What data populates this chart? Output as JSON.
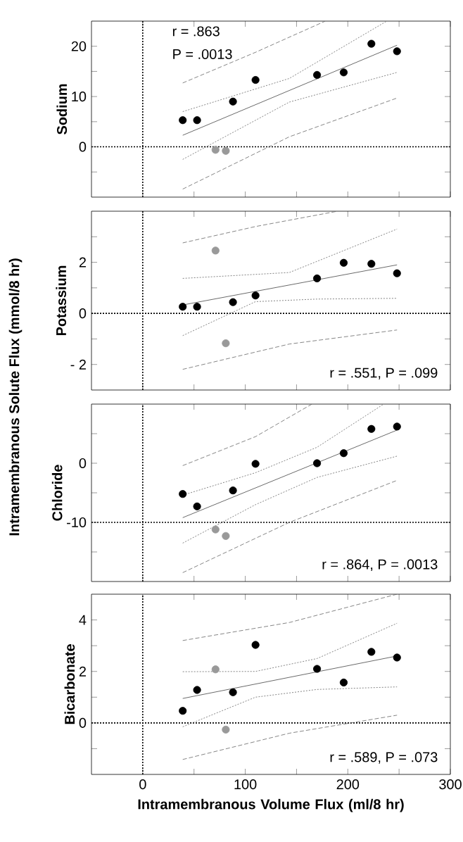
{
  "chart_data": [
    {
      "type": "scatter",
      "ylabel": "Sodium",
      "annotations": [
        "Intramembranous Solute Flux (mmol/8 hr)",
        "r =  .863",
        "P = .0013"
      ],
      "xlim": [
        -50,
        300
      ],
      "ylim": [
        -10,
        25
      ],
      "xticks": [
        0,
        {
          "value": 50,
          "label": null
        },
        100,
        {
          "value": 150,
          "label": null
        },
        200,
        {
          "value": 250,
          "label": null
        },
        300
      ],
      "yticks": [
        {
          "value": -5,
          "label": null
        },
        0,
        {
          "value": 5,
          "label": null
        },
        10,
        {
          "value": 15,
          "label": null
        },
        20
      ],
      "tick_labels": "y",
      "marker": "circle",
      "ref_lines": [
        {
          "axis": "x",
          "value": 0,
          "line_style": "dotted"
        },
        {
          "axis": "y",
          "value": 0,
          "line_style": "dotted"
        }
      ],
      "series": [
        {
          "color": "#000000",
          "x": [
            39,
            53,
            88,
            110,
            170,
            196,
            223,
            248
          ],
          "values": [
            5.3,
            5.3,
            9.0,
            13.3,
            14.3,
            14.8,
            20.5,
            19.0
          ]
        },
        {
          "color": "#999999",
          "x": [
            71,
            81
          ],
          "values": [
            -0.6,
            -0.8
          ]
        },
        {
          "type": "line",
          "color": "#444444",
          "marker": "none",
          "line_style": "solid",
          "x": [
            39,
            248
          ],
          "values": [
            2.3,
            20.2
          ]
        },
        {
          "type": "line",
          "color": "#666666",
          "marker": "none",
          "line_style": "dotted",
          "x": [
            39,
            143,
            238
          ],
          "values": [
            7.0,
            13.6,
            25
          ]
        },
        {
          "type": "line",
          "color": "#666666",
          "marker": "none",
          "line_style": "dotted",
          "x": [
            39,
            143,
            248
          ],
          "values": [
            -2.5,
            8.9,
            14.8
          ]
        },
        {
          "type": "line",
          "color": "#666666",
          "marker": "none",
          "line_style": "dashed",
          "x": [
            39,
            110,
            178
          ],
          "values": [
            12.7,
            18.8,
            25
          ]
        },
        {
          "type": "line",
          "color": "#666666",
          "marker": "none",
          "line_style": "dashed",
          "x": [
            39,
            143,
            248
          ],
          "values": [
            -8.4,
            2.0,
            9.7
          ]
        }
      ]
    },
    {
      "type": "scatter",
      "ylabel": "Potassium",
      "annotations": [
        "r =  .551,  P =  .099"
      ],
      "xlim": [
        -50,
        300
      ],
      "ylim": [
        -3,
        4
      ],
      "xticks": [
        0,
        {
          "value": 50,
          "label": null
        },
        100,
        {
          "value": 150,
          "label": null
        },
        200,
        {
          "value": 250,
          "label": null
        },
        300
      ],
      "yticks": [
        {
          "value": -2,
          "label": "- 2"
        },
        {
          "value": -1,
          "label": null
        },
        0,
        {
          "value": 1,
          "label": null
        },
        2,
        {
          "value": 3,
          "label": null
        }
      ],
      "tick_labels": "y",
      "marker": "circle",
      "ref_lines": [
        {
          "axis": "x",
          "value": 0,
          "line_style": "dotted"
        },
        {
          "axis": "y",
          "value": 0,
          "line_style": "dotted"
        }
      ],
      "series": [
        {
          "color": "#000000",
          "x": [
            39,
            53,
            88,
            110,
            170,
            196,
            223,
            248
          ],
          "values": [
            0.26,
            0.26,
            0.44,
            0.7,
            1.37,
            1.98,
            1.94,
            1.57
          ]
        },
        {
          "color": "#999999",
          "x": [
            71,
            81
          ],
          "values": [
            2.46,
            -1.17
          ]
        },
        {
          "type": "line",
          "color": "#444444",
          "marker": "none",
          "line_style": "solid",
          "x": [
            39,
            248
          ],
          "values": [
            0.33,
            1.9
          ]
        },
        {
          "type": "line",
          "color": "#666666",
          "marker": "none",
          "line_style": "dotted",
          "x": [
            39,
            143,
            248
          ],
          "values": [
            1.37,
            1.6,
            3.3
          ]
        },
        {
          "type": "line",
          "color": "#666666",
          "marker": "none",
          "line_style": "dotted",
          "x": [
            39,
            110,
            170,
            248
          ],
          "values": [
            -0.87,
            0.46,
            0.56,
            0.59
          ]
        },
        {
          "type": "line",
          "color": "#666666",
          "marker": "none",
          "line_style": "dashed",
          "x": [
            39,
            110,
            190
          ],
          "values": [
            2.76,
            3.4,
            4.0
          ]
        },
        {
          "type": "line",
          "color": "#666666",
          "marker": "none",
          "line_style": "dashed",
          "x": [
            39,
            143,
            248
          ],
          "values": [
            -2.19,
            -1.2,
            -0.65
          ]
        }
      ]
    },
    {
      "type": "scatter",
      "ylabel": "Chloride",
      "annotations": [
        "r =  .864,  P = .0013"
      ],
      "xlim": [
        -50,
        300
      ],
      "ylim": [
        -20,
        10
      ],
      "xticks": [
        0,
        {
          "value": 50,
          "label": null
        },
        100,
        {
          "value": 150,
          "label": null
        },
        200,
        {
          "value": 250,
          "label": null
        },
        300
      ],
      "yticks": [
        {
          "value": -15,
          "label": null
        },
        -10,
        {
          "value": -5,
          "label": null
        },
        0,
        {
          "value": 5,
          "label": null
        }
      ],
      "tick_labels": "y",
      "marker": "circle",
      "ref_lines": [
        {
          "axis": "x",
          "value": 0,
          "line_style": "dotted"
        },
        {
          "axis": "y",
          "value": -10,
          "line_style": "dotted"
        }
      ],
      "series": [
        {
          "color": "#000000",
          "x": [
            39,
            53,
            88,
            110,
            170,
            196,
            223,
            248
          ],
          "values": [
            -5.2,
            -7.3,
            -4.6,
            -0.1,
            0,
            1.7,
            5.8,
            6.2
          ]
        },
        {
          "color": "#999999",
          "x": [
            71,
            81
          ],
          "values": [
            -11.2,
            -12.3
          ]
        },
        {
          "type": "line",
          "color": "#444444",
          "marker": "none",
          "line_style": "solid",
          "x": [
            39,
            248
          ],
          "values": [
            -9.2,
            5.6
          ]
        },
        {
          "type": "line",
          "color": "#666666",
          "marker": "none",
          "line_style": "dotted",
          "x": [
            39,
            110,
            170,
            235
          ],
          "values": [
            -5.4,
            -1.6,
            2.7,
            10
          ]
        },
        {
          "type": "line",
          "color": "#666666",
          "marker": "none",
          "line_style": "dotted",
          "x": [
            39,
            110,
            170,
            248
          ],
          "values": [
            -13.5,
            -7.0,
            -2.4,
            1.2
          ]
        },
        {
          "type": "line",
          "color": "#666666",
          "marker": "none",
          "line_style": "dashed",
          "x": [
            39,
            110,
            165
          ],
          "values": [
            -0.4,
            4.5,
            10
          ]
        },
        {
          "type": "line",
          "color": "#666666",
          "marker": "none",
          "line_style": "dashed",
          "x": [
            39,
            143,
            248
          ],
          "values": [
            -18.5,
            -10,
            -2.9
          ]
        }
      ]
    },
    {
      "type": "scatter",
      "ylabel": "Bicarbonate",
      "xlabel": "Intramembranous Volume Flux (ml/8 hr)",
      "annotations": [
        "r =  .589,  P =  .073"
      ],
      "xlim": [
        -50,
        300
      ],
      "ylim": [
        -2,
        5
      ],
      "xticks": [
        0,
        {
          "value": 50,
          "label": null
        },
        100,
        {
          "value": 150,
          "label": null
        },
        200,
        {
          "value": 250,
          "label": null
        },
        300
      ],
      "yticks": [
        {
          "value": -1,
          "label": null
        },
        0,
        {
          "value": 1,
          "label": null
        },
        2,
        {
          "value": 3,
          "label": null
        },
        4
      ],
      "marker": "circle",
      "ref_lines": [
        {
          "axis": "x",
          "value": 0,
          "line_style": "dotted"
        },
        {
          "axis": "y",
          "value": 0,
          "line_style": "dotted"
        }
      ],
      "series": [
        {
          "color": "#000000",
          "x": [
            39,
            53,
            88,
            110,
            170,
            196,
            223,
            248
          ],
          "values": [
            0.47,
            1.28,
            1.19,
            3.03,
            2.1,
            1.57,
            2.76,
            2.54
          ]
        },
        {
          "color": "#999999",
          "x": [
            71,
            81
          ],
          "values": [
            2.08,
            -0.26
          ]
        },
        {
          "type": "line",
          "color": "#444444",
          "marker": "none",
          "line_style": "solid",
          "x": [
            39,
            248
          ],
          "values": [
            0.95,
            2.6
          ]
        },
        {
          "type": "line",
          "color": "#666666",
          "marker": "none",
          "line_style": "dotted",
          "x": [
            39,
            110,
            170,
            248
          ],
          "values": [
            1.99,
            2.0,
            2.5,
            3.87
          ]
        },
        {
          "type": "line",
          "color": "#666666",
          "marker": "none",
          "line_style": "dotted",
          "x": [
            39,
            110,
            170,
            248
          ],
          "values": [
            -0.15,
            1.0,
            1.3,
            1.4
          ]
        },
        {
          "type": "line",
          "color": "#666666",
          "marker": "none",
          "line_style": "dashed",
          "x": [
            39,
            143,
            248
          ],
          "values": [
            3.2,
            3.9,
            5.0
          ]
        },
        {
          "type": "line",
          "color": "#666666",
          "marker": "none",
          "line_style": "dashed",
          "x": [
            39,
            143,
            248
          ],
          "values": [
            -1.42,
            -0.4,
            0.3
          ]
        }
      ]
    }
  ]
}
